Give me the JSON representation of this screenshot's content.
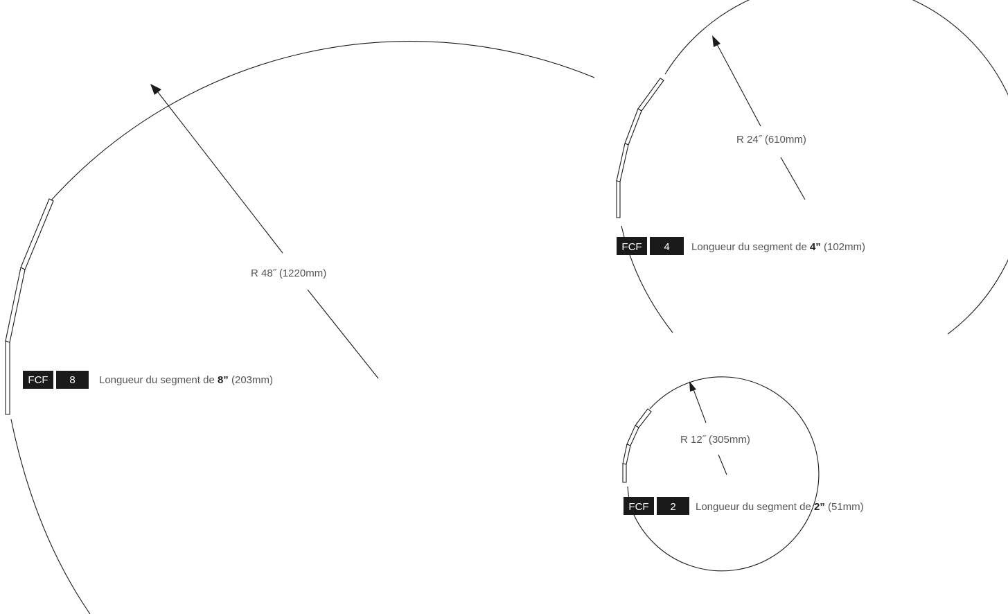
{
  "diagrams": [
    {
      "radius_label": "R 48˝ (1220mm)",
      "badge_brand": "FCF",
      "badge_number": "8",
      "caption_prefix": "Longueur du segment de ",
      "caption_strong": "8”",
      "caption_suffix": " (203mm)"
    },
    {
      "radius_label": "R 24˝ (610mm)",
      "badge_brand": "FCF",
      "badge_number": "4",
      "caption_prefix": "Longueur du segment de ",
      "caption_strong": "4”",
      "caption_suffix": " (102mm)"
    },
    {
      "radius_label": "R 12˝ (305mm)",
      "badge_brand": "FCF",
      "badge_number": "2",
      "caption_prefix": "Longueur du segment de ",
      "caption_strong": "2”",
      "caption_suffix": " (51mm)"
    }
  ],
  "colors": {
    "line": "#1a1a1a",
    "badge_background": "#1a1a1a",
    "badge_text": "#ffffff",
    "label_text": "#555555"
  }
}
